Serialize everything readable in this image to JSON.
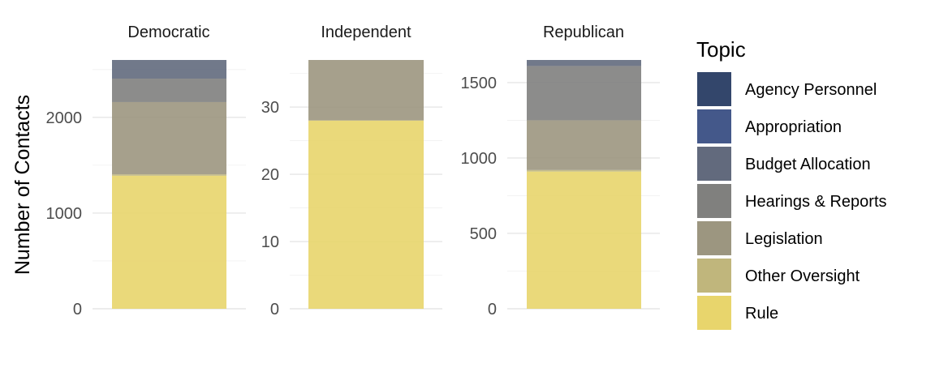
{
  "chart_data": {
    "type": "bar",
    "stacked": true,
    "ylabel": "Number of Contacts",
    "legend_title": "Topic",
    "legend_position": "right",
    "topics": [
      "Agency Personnel",
      "Appropriation",
      "Budget Allocation",
      "Hearings & Reports",
      "Legislation",
      "Other Oversight",
      "Rule"
    ],
    "colors": {
      "Agency Personnel": "#33466b",
      "Appropriation": "#44588a",
      "Budget Allocation": "#626a7d",
      "Hearings & Reports": "#80807e",
      "Legislation": "#9c9680",
      "Other Oversight": "#c0b67c",
      "Rule": "#e8d56c"
    },
    "panels": [
      {
        "label": "Democratic",
        "ylim": [
          0,
          2600
        ],
        "yticks": [
          0,
          1000,
          2000
        ],
        "stack": [
          {
            "topic": "Rule",
            "value": 1390
          },
          {
            "topic": "Other Oversight",
            "value": 15
          },
          {
            "topic": "Legislation",
            "value": 755
          },
          {
            "topic": "Hearings & Reports",
            "value": 245
          },
          {
            "topic": "Budget Allocation",
            "value": 195
          }
        ]
      },
      {
        "label": "Independent",
        "ylim": [
          0,
          37
        ],
        "yticks": [
          0,
          10,
          20,
          30
        ],
        "stack": [
          {
            "topic": "Rule",
            "value": 28
          },
          {
            "topic": "Legislation",
            "value": 9
          }
        ]
      },
      {
        "label": "Republican",
        "ylim": [
          0,
          1650
        ],
        "yticks": [
          0,
          500,
          1000,
          1500
        ],
        "stack": [
          {
            "topic": "Rule",
            "value": 910
          },
          {
            "topic": "Other Oversight",
            "value": 10
          },
          {
            "topic": "Legislation",
            "value": 330
          },
          {
            "topic": "Hearings & Reports",
            "value": 360
          },
          {
            "topic": "Budget Allocation",
            "value": 40
          }
        ]
      }
    ]
  }
}
